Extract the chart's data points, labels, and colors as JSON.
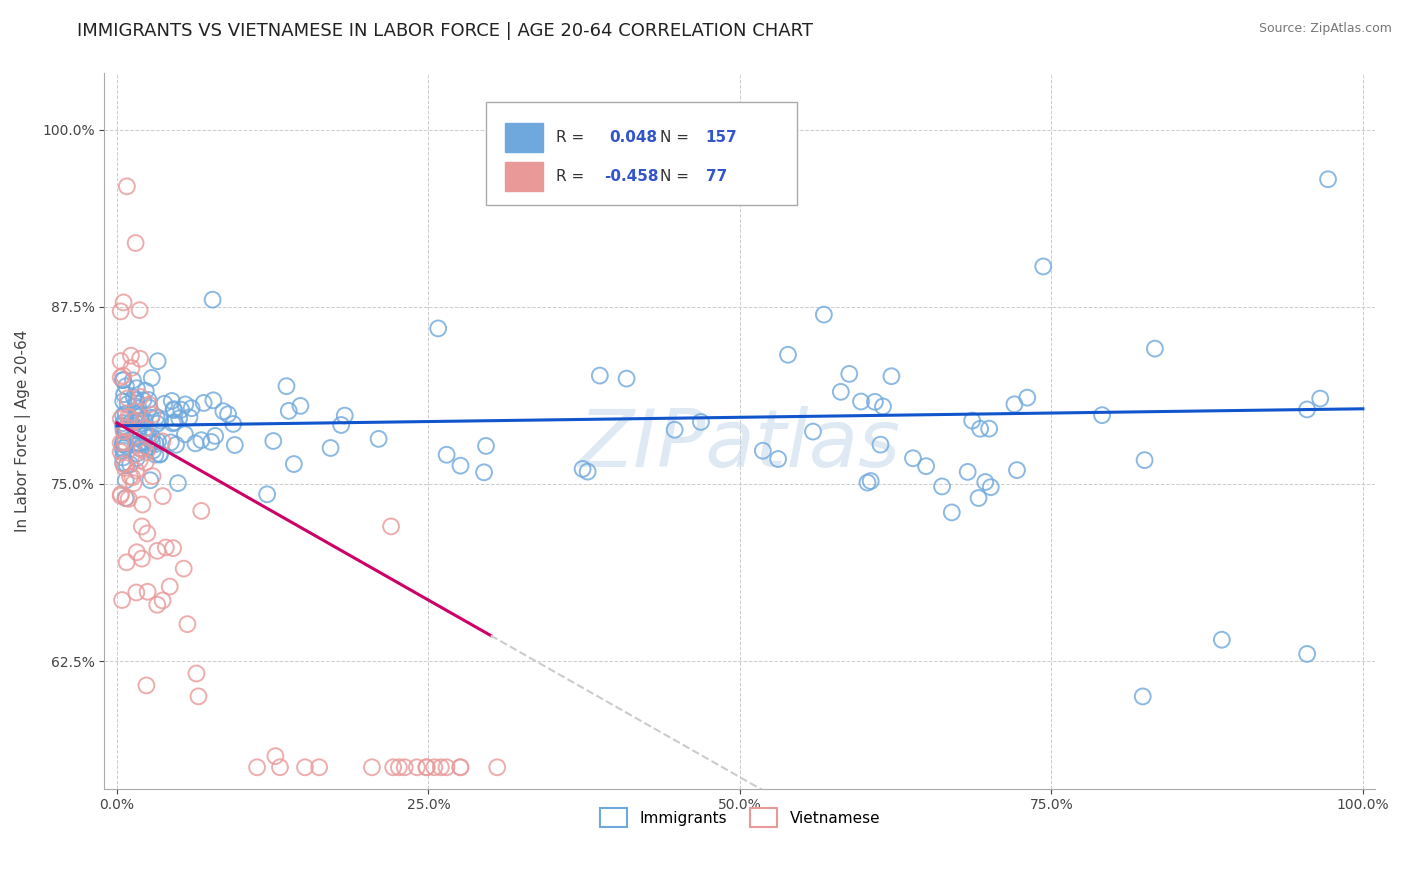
{
  "title": "IMMIGRANTS VS VIETNAMESE IN LABOR FORCE | AGE 20-64 CORRELATION CHART",
  "source": "Source: ZipAtlas.com",
  "ylabel": "In Labor Force | Age 20-64",
  "xlim": [
    -0.01,
    1.01
  ],
  "ylim": [
    0.535,
    1.04
  ],
  "yticks": [
    0.625,
    0.75,
    0.875,
    1.0
  ],
  "xticks": [
    0.0,
    0.25,
    0.5,
    0.75,
    1.0
  ],
  "R_immigrants": 0.048,
  "N_immigrants": 157,
  "R_vietnamese": -0.458,
  "N_vietnamese": 77,
  "color_immigrants": "#6FA8DC",
  "color_vietnamese": "#EA9999",
  "color_line_immigrants": "#1155CC",
  "color_line_vietnamese": "#CC0066",
  "color_line_ext": "#CCCCCC",
  "background_color": "#FFFFFF",
  "grid_color": "#CCCCCC",
  "title_fontsize": 13,
  "label_fontsize": 11,
  "tick_fontsize": 10
}
